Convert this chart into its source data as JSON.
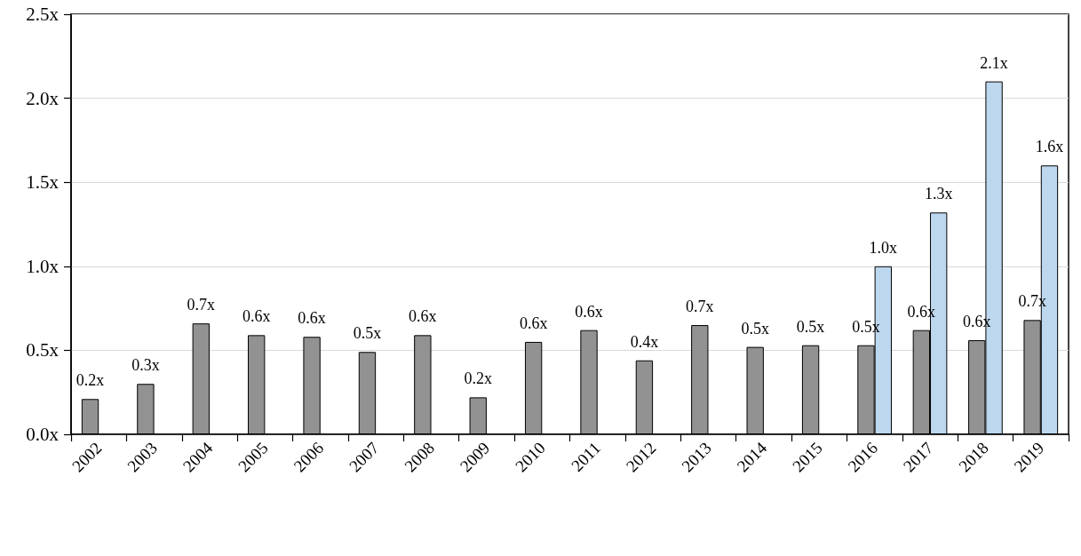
{
  "chart_data": {
    "type": "bar",
    "categories": [
      "2002",
      "2003",
      "2004",
      "2005",
      "2006",
      "2007",
      "2008",
      "2009",
      "2010",
      "2011",
      "2012",
      "2013",
      "2014",
      "2015",
      "2016",
      "2017",
      "2018",
      "2019"
    ],
    "series": [
      {
        "color": "#929292",
        "values": [
          0.21,
          0.3,
          0.66,
          0.59,
          0.58,
          0.49,
          0.59,
          0.22,
          0.55,
          0.62,
          0.44,
          0.65,
          0.52,
          0.53,
          0.53,
          0.62,
          0.56,
          0.68
        ],
        "value_labels": [
          "0.2x",
          "0.3x",
          "0.7x",
          "0.6x",
          "0.6x",
          "0.5x",
          "0.6x",
          "0.2x",
          "0.6x",
          "0.6x",
          "0.4x",
          "0.7x",
          "0.5x",
          "0.5x",
          "0.5x",
          "0.6x",
          "0.6x",
          "0.7x"
        ]
      },
      {
        "color": "#bdd7ee",
        "values": [
          null,
          null,
          null,
          null,
          null,
          null,
          null,
          null,
          null,
          null,
          null,
          null,
          null,
          null,
          1.0,
          1.32,
          2.1,
          1.6
        ],
        "value_labels": [
          null,
          null,
          null,
          null,
          null,
          null,
          null,
          null,
          null,
          null,
          null,
          null,
          null,
          null,
          "1.0x",
          "1.3x",
          "2.1x",
          "1.6x"
        ]
      }
    ],
    "ylim": [
      0,
      2.5
    ],
    "yticks": [
      {
        "value": 0,
        "label": "0.0x"
      },
      {
        "value": 0.5,
        "label": "0.5x"
      },
      {
        "value": 1,
        "label": "1.0x"
      },
      {
        "value": 1.5,
        "label": "1.5x"
      },
      {
        "value": 2,
        "label": "2.0x"
      },
      {
        "value": 2.5,
        "label": "2.5x"
      }
    ],
    "grid": "y"
  }
}
